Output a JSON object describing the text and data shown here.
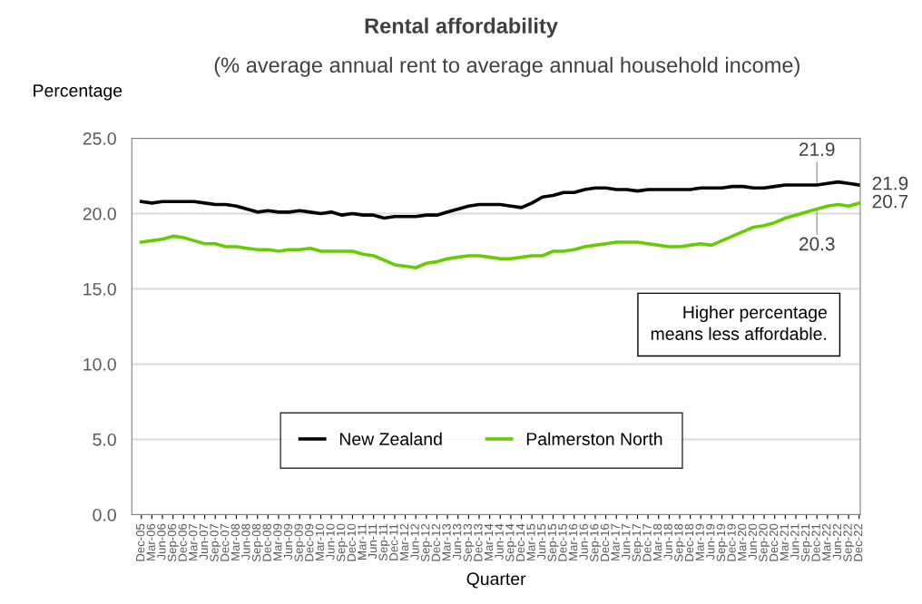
{
  "chart_data": {
    "type": "line",
    "title": "Rental affordability",
    "subtitle": "(% average annual rent to average annual household income)",
    "xlabel": "Quarter",
    "ylabel": "Percentage",
    "categories": [
      "Dec-05",
      "Mar-06",
      "Jun-06",
      "Sep-06",
      "Dec-06",
      "Mar-07",
      "Jun-07",
      "Sep-07",
      "Dec-07",
      "Mar-08",
      "Jun-08",
      "Sep-08",
      "Dec-08",
      "Mar-09",
      "Jun-09",
      "Sep-09",
      "Dec-09",
      "Mar-10",
      "Jun-10",
      "Sep-10",
      "Dec-10",
      "Mar-11",
      "Jun-11",
      "Sep-11",
      "Dec-11",
      "Mar-12",
      "Jun-12",
      "Sep-12",
      "Dec-12",
      "Mar-13",
      "Jun-13",
      "Sep-13",
      "Dec-13",
      "Mar-14",
      "Jun-14",
      "Sep-14",
      "Dec-14",
      "Mar-15",
      "Jun-15",
      "Sep-15",
      "Dec-15",
      "Mar-16",
      "Jun-16",
      "Sep-16",
      "Dec-16",
      "Mar-17",
      "Jun-17",
      "Sep-17",
      "Dec-17",
      "Mar-18",
      "Jun-18",
      "Sep-18",
      "Dec-18",
      "Mar-19",
      "Jun-19",
      "Sep-19",
      "Dec-19",
      "Mar-20",
      "Jun-20",
      "Sep-20",
      "Dec-20",
      "Mar-21",
      "Jun-21",
      "Sep-21",
      "Dec-21",
      "Mar-22",
      "Jun-22",
      "Sep-22",
      "Dec-22"
    ],
    "series": [
      {
        "name": "New Zealand",
        "color": "#000000",
        "values": [
          20.8,
          20.7,
          20.8,
          20.8,
          20.8,
          20.8,
          20.7,
          20.6,
          20.6,
          20.5,
          20.3,
          20.1,
          20.2,
          20.1,
          20.1,
          20.2,
          20.1,
          20.0,
          20.1,
          19.9,
          20.0,
          19.9,
          19.9,
          19.7,
          19.8,
          19.8,
          19.8,
          19.9,
          19.9,
          20.1,
          20.3,
          20.5,
          20.6,
          20.6,
          20.6,
          20.5,
          20.4,
          20.7,
          21.1,
          21.2,
          21.4,
          21.4,
          21.6,
          21.7,
          21.7,
          21.6,
          21.6,
          21.5,
          21.6,
          21.6,
          21.6,
          21.6,
          21.6,
          21.7,
          21.7,
          21.7,
          21.8,
          21.8,
          21.7,
          21.7,
          21.8,
          21.9,
          21.9,
          21.9,
          21.9,
          22.0,
          22.1,
          22.0,
          21.9
        ],
        "value_labels": [
          null,
          null,
          null,
          null,
          null,
          null,
          null,
          null,
          null,
          null,
          null,
          null,
          null,
          null,
          null,
          null,
          null,
          null,
          null,
          null,
          null,
          null,
          null,
          null,
          null,
          null,
          null,
          null,
          null,
          null,
          null,
          null,
          null,
          null,
          null,
          null,
          null,
          null,
          null,
          null,
          null,
          null,
          null,
          null,
          null,
          null,
          null,
          null,
          null,
          null,
          null,
          null,
          null,
          null,
          null,
          null,
          null,
          null,
          null,
          null,
          null,
          null,
          null,
          null,
          "21.9",
          null,
          null,
          null,
          "21.9"
        ]
      },
      {
        "name": "Palmerston North",
        "color": "#66cc00",
        "values": [
          18.1,
          18.2,
          18.3,
          18.5,
          18.4,
          18.2,
          18.0,
          18.0,
          17.8,
          17.8,
          17.7,
          17.6,
          17.6,
          17.5,
          17.6,
          17.6,
          17.7,
          17.5,
          17.5,
          17.5,
          17.5,
          17.3,
          17.2,
          16.9,
          16.6,
          16.5,
          16.4,
          16.7,
          16.8,
          17.0,
          17.1,
          17.2,
          17.2,
          17.1,
          17.0,
          17.0,
          17.1,
          17.2,
          17.2,
          17.5,
          17.5,
          17.6,
          17.8,
          17.9,
          18.0,
          18.1,
          18.1,
          18.1,
          18.0,
          17.9,
          17.8,
          17.8,
          17.9,
          18.0,
          17.9,
          18.2,
          18.5,
          18.8,
          19.1,
          19.2,
          19.4,
          19.7,
          19.9,
          20.1,
          20.3,
          20.5,
          20.6,
          20.5,
          20.7
        ],
        "value_labels": [
          null,
          null,
          null,
          null,
          null,
          null,
          null,
          null,
          null,
          null,
          null,
          null,
          null,
          null,
          null,
          null,
          null,
          null,
          null,
          null,
          null,
          null,
          null,
          null,
          null,
          null,
          null,
          null,
          null,
          null,
          null,
          null,
          null,
          null,
          null,
          null,
          null,
          null,
          null,
          null,
          null,
          null,
          null,
          null,
          null,
          null,
          null,
          null,
          null,
          null,
          null,
          null,
          null,
          null,
          null,
          null,
          null,
          null,
          null,
          null,
          null,
          null,
          null,
          null,
          "20.3",
          null,
          null,
          null,
          "20.7"
        ]
      }
    ],
    "ylim": [
      0,
      25
    ],
    "yticks": [
      {
        "value": 0,
        "label": "0.0"
      },
      {
        "value": 5,
        "label": "5.0"
      },
      {
        "value": 10,
        "label": "10.0"
      },
      {
        "value": 15,
        "label": "15.0"
      },
      {
        "value": 20,
        "label": "20.0"
      },
      {
        "value": 25,
        "label": "25.0"
      }
    ],
    "grid": "y",
    "legend": "bottom",
    "marker": "none",
    "line_style": "solid",
    "annotations": [
      "Higher percentage\nmeans less affordable."
    ]
  }
}
